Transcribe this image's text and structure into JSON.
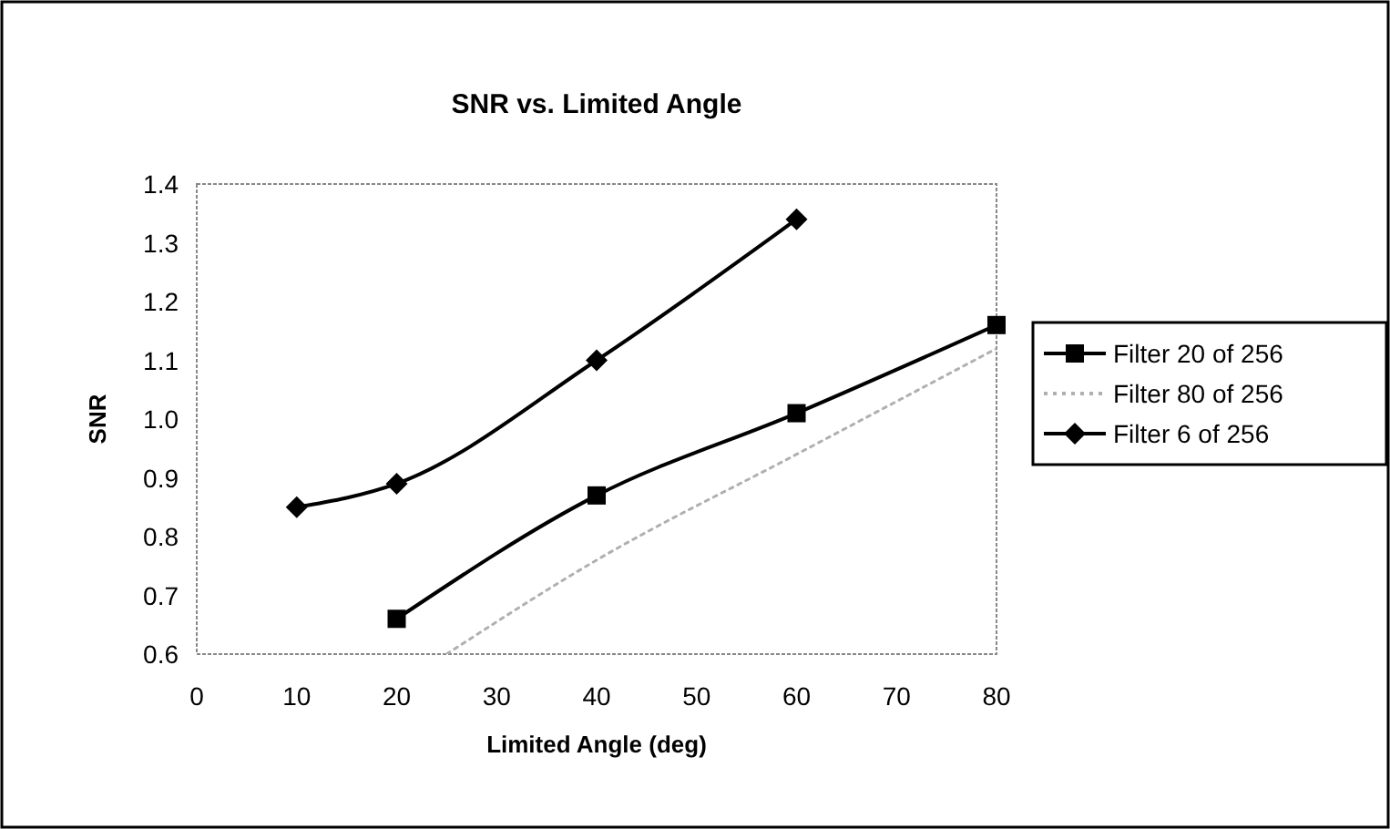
{
  "chart_data": {
    "type": "line",
    "title": "SNR vs. Limited Angle",
    "xlabel": "Limited Angle (deg)",
    "ylabel": "SNR",
    "xlim": [
      0,
      80
    ],
    "xticks": [
      0,
      10,
      20,
      30,
      40,
      50,
      60,
      70,
      80
    ],
    "ylim": [
      0.6,
      1.4
    ],
    "yticks": [
      {
        "value": 0.6,
        "label": "0.6"
      },
      {
        "value": 0.7,
        "label": "0.7"
      },
      {
        "value": 0.8,
        "label": "0.8"
      },
      {
        "value": 0.9,
        "label": "0.9"
      },
      {
        "value": 1.0,
        "label": "1.0"
      },
      {
        "value": 1.1,
        "label": "1.1"
      },
      {
        "value": 1.2,
        "label": "1.2"
      },
      {
        "value": 1.3,
        "label": "1.3"
      },
      {
        "value": 1.4,
        "label": "1.4"
      }
    ],
    "grid": false,
    "legend": "right",
    "series": [
      {
        "name": "Filter 20 of 256",
        "color": "#000000",
        "x": [
          20,
          40,
          60,
          80
        ],
        "values": [
          0.66,
          0.87,
          1.01,
          1.16
        ],
        "marker": "square",
        "line_style": "solid"
      },
      {
        "name": "Filter 80 of 256",
        "color": "#b0b0b0",
        "x": [
          25,
          40,
          60,
          80
        ],
        "values": [
          0.6,
          0.76,
          0.94,
          1.12
        ],
        "marker": "none",
        "line_style": "dotted"
      },
      {
        "name": "Filter 6 of 256",
        "color": "#000000",
        "x": [
          10,
          20,
          40,
          60
        ],
        "values": [
          0.85,
          0.89,
          1.1,
          1.34
        ],
        "marker": "diamond",
        "line_style": "solid"
      }
    ]
  }
}
